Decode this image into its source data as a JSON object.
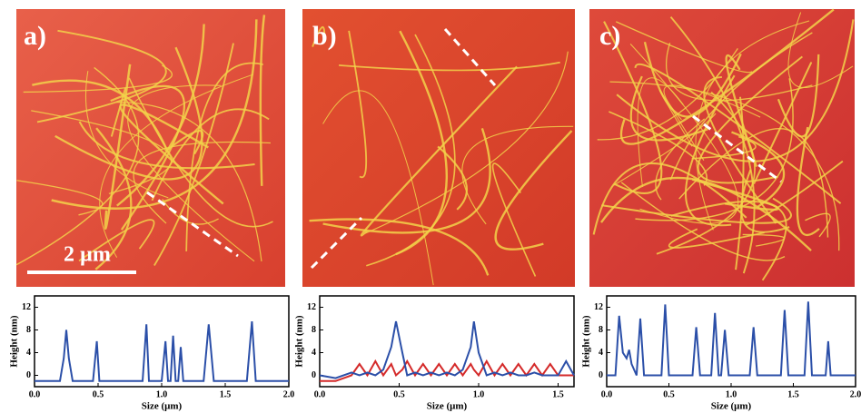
{
  "panels": [
    {
      "label": "a)"
    },
    {
      "label": "b)"
    },
    {
      "label": "c)"
    }
  ],
  "scale_bar": "2 µm",
  "chart_data": [
    {
      "type": "line",
      "y_label": "Height (nm)",
      "x_label": "Size (μm)",
      "x": [
        0,
        0.2,
        0.23,
        0.25,
        0.27,
        0.3,
        0.46,
        0.49,
        0.51,
        0.85,
        0.88,
        0.9,
        1.0,
        1.03,
        1.05,
        1.07,
        1.09,
        1.11,
        1.13,
        1.15,
        1.17,
        1.33,
        1.37,
        1.41,
        1.67,
        1.71,
        1.74,
        2.0
      ],
      "series": [
        {
          "color": "#2b4fa8",
          "values": [
            -1,
            -1,
            3,
            8,
            3,
            -1,
            -1,
            6,
            -1,
            -1,
            9,
            -1,
            -1,
            6,
            -1,
            -1,
            7,
            -1,
            -1,
            5,
            -1,
            -1,
            9,
            -1,
            -1,
            9.5,
            -1,
            -1
          ]
        }
      ],
      "xlim": [
        0,
        2
      ],
      "xticks": [
        {
          "value": 0,
          "label": "0.0"
        },
        {
          "value": 0.5,
          "label": "0.5"
        },
        {
          "value": 1,
          "label": "1.0"
        },
        {
          "value": 1.5,
          "label": "1.5"
        },
        {
          "value": 2,
          "label": "2.0"
        }
      ],
      "ylim": [
        -2,
        14
      ],
      "yticks": [
        0,
        4,
        8,
        12
      ]
    },
    {
      "type": "line",
      "y_label": "Height (nm)",
      "x_label": "Size (μm)",
      "x": [
        0,
        0.1,
        0.2,
        0.25,
        0.3,
        0.35,
        0.4,
        0.45,
        0.48,
        0.52,
        0.55,
        0.6,
        0.65,
        0.7,
        0.75,
        0.8,
        0.85,
        0.9,
        0.95,
        0.97,
        1.0,
        1.05,
        1.1,
        1.15,
        1.2,
        1.25,
        1.3,
        1.35,
        1.4,
        1.45,
        1.5,
        1.55,
        1.6
      ],
      "series": [
        {
          "color": "#d42a2a",
          "values": [
            -1,
            -1,
            0,
            2,
            0,
            2.5,
            0,
            2,
            0,
            1,
            2.5,
            0,
            2,
            0,
            2,
            0,
            2,
            0,
            2,
            1,
            0,
            2.5,
            0,
            2,
            0,
            2,
            0,
            2,
            0,
            2,
            0,
            0,
            0
          ]
        },
        {
          "color": "#2b4fa8",
          "values": [
            0,
            -0.5,
            0.5,
            0,
            0.5,
            0,
            1,
            5,
            9.5,
            4,
            0,
            0.5,
            0,
            0.5,
            0,
            0.5,
            0,
            1,
            5,
            9.5,
            4,
            0,
            0.5,
            0,
            0.5,
            0,
            0,
            0.5,
            0,
            0,
            0,
            2.5,
            0
          ]
        }
      ],
      "xlim": [
        0,
        1.6
      ],
      "xticks": [
        {
          "value": 0,
          "label": "0.0"
        },
        {
          "value": 0.5,
          "label": "0.5"
        },
        {
          "value": 1,
          "label": "1.0"
        },
        {
          "value": 1.5,
          "label": "1.5"
        }
      ],
      "ylim": [
        -2,
        14
      ],
      "yticks": [
        0,
        4,
        8,
        12
      ]
    },
    {
      "type": "line",
      "y_label": "Height (nm)",
      "x_label": "Size (μm)",
      "x": [
        0,
        0.07,
        0.1,
        0.13,
        0.16,
        0.18,
        0.2,
        0.24,
        0.27,
        0.3,
        0.44,
        0.47,
        0.5,
        0.69,
        0.72,
        0.75,
        0.84,
        0.87,
        0.9,
        0.92,
        0.95,
        0.98,
        1.15,
        1.18,
        1.21,
        1.4,
        1.43,
        1.46,
        1.59,
        1.62,
        1.65,
        1.76,
        1.78,
        1.8,
        2.0
      ],
      "series": [
        {
          "color": "#2b4fa8",
          "values": [
            0,
            0,
            10.5,
            4,
            3,
            4.5,
            2,
            0,
            10,
            0,
            0,
            12.5,
            0,
            0,
            8.5,
            0,
            0,
            11,
            0,
            0,
            8,
            0,
            0,
            8.5,
            0,
            0,
            11.5,
            0,
            0,
            13,
            0,
            0,
            6,
            0,
            0
          ]
        }
      ],
      "xlim": [
        0,
        2
      ],
      "xticks": [
        {
          "value": 0,
          "label": "0.0"
        },
        {
          "value": 0.5,
          "label": "0.5"
        },
        {
          "value": 1,
          "label": "1.0"
        },
        {
          "value": 1.5,
          "label": "1.5"
        },
        {
          "value": 2,
          "label": "2.0"
        }
      ],
      "ylim": [
        -2,
        14
      ],
      "yticks": [
        0,
        4,
        8,
        12
      ]
    }
  ]
}
